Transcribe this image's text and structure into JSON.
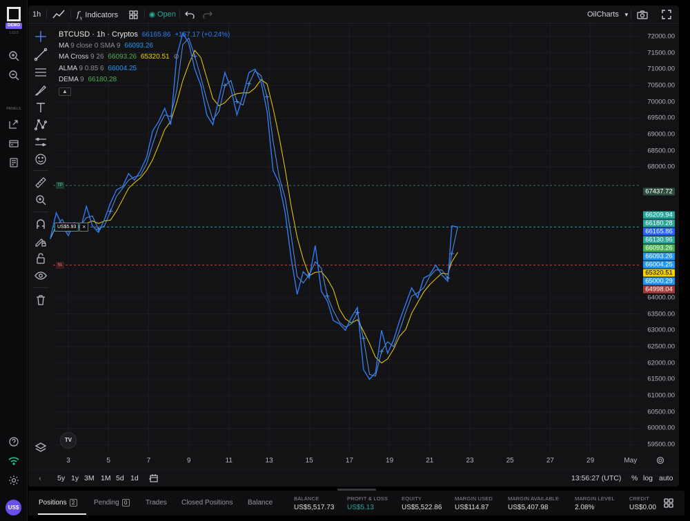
{
  "app": {
    "badge": "DEMO",
    "version": "1.63.5",
    "panels_label": "PANELS",
    "user_initials": "US$"
  },
  "toolbar": {
    "interval": "1h",
    "indicators_label": "Indicators",
    "market_status": "Open",
    "layout_name": "OilCharts"
  },
  "legend": {
    "symbol": "BTCUSD · 1h · Cryptos",
    "price": "66165.86",
    "change": "+157.17 (+0.24%)",
    "ma": {
      "name": "MA",
      "params": "9 close 0 SMA 9",
      "value": "66093.26"
    },
    "ma_cross": {
      "name": "MA Cross",
      "params": "9 26",
      "value1": "66093.26",
      "value2": "65320.51"
    },
    "alma": {
      "name": "ALMA",
      "params": "9 0.85 6",
      "value": "66004.25"
    },
    "dema": {
      "name": "DEMA",
      "params": "9",
      "value": "66180.28"
    }
  },
  "orders": {
    "tp_label": "TP",
    "sl_label": "SL",
    "position_pnl": "US$5.93"
  },
  "price_axis": {
    "ticks": [
      "72000.00",
      "71500.00",
      "71000.00",
      "70500.00",
      "70000.00",
      "69500.00",
      "69000.00",
      "68500.00",
      "68000.00",
      "64000.00",
      "63500.00",
      "63000.00",
      "62500.00",
      "62000.00",
      "61500.00",
      "61000.00",
      "60500.00",
      "60000.00",
      "59500.00"
    ],
    "badges": [
      {
        "value": "67437.72",
        "color": "#2e4d3f"
      },
      {
        "value": "66209.94",
        "color": "#26a69a"
      },
      {
        "value": "66180.28",
        "color": "#26a69a"
      },
      {
        "value": "66165.86",
        "color": "#2962ff"
      },
      {
        "value": "66130.96",
        "color": "#26a69a"
      },
      {
        "value": "66093.26",
        "color": "#4caf50"
      },
      {
        "value": "66093.26",
        "color": "#2196f3"
      },
      {
        "value": "66004.25",
        "color": "#2196f3"
      },
      {
        "value": "65320.51",
        "color": "#f5d300"
      },
      {
        "value": "65000.29",
        "color": "#2196f3"
      },
      {
        "value": "64998.04",
        "color": "#a83a3a"
      }
    ]
  },
  "time_axis": {
    "ticks": [
      "3",
      "5",
      "7",
      "9",
      "11",
      "13",
      "15",
      "17",
      "19",
      "21",
      "23",
      "25",
      "27",
      "29",
      "May"
    ]
  },
  "rangebar": {
    "ranges": [
      "5y",
      "1y",
      "3M",
      "1M",
      "5d",
      "1d"
    ],
    "clock": "13:56:27 (UTC)",
    "percent": "%",
    "log": "log",
    "auto": "auto"
  },
  "account": {
    "tabs": [
      {
        "label": "Positions",
        "count": "2"
      },
      {
        "label": "Pending",
        "count": "0"
      },
      {
        "label": "Trades"
      },
      {
        "label": "Closed Positions"
      },
      {
        "label": "Balance"
      }
    ],
    "stats": [
      {
        "label": "BALANCE",
        "value": "US$5,517.73"
      },
      {
        "label": "PROFIT & LOSS",
        "value": "US$5.13"
      },
      {
        "label": "EQUITY",
        "value": "US$5,522.86"
      },
      {
        "label": "MARGIN USED",
        "value": "US$114.87"
      },
      {
        "label": "MARGIN AVAILABLE",
        "value": "US$5,407.98"
      },
      {
        "label": "MARGIN LEVEL",
        "value": "2.08%"
      },
      {
        "label": "CREDIT",
        "value": "US$0.00"
      }
    ]
  },
  "colors": {
    "price_line": "#2f7cf6",
    "ma_slow": "#f5d300",
    "tp_line": "#2e7d64",
    "position_line": "#26a69a",
    "sl_line": "#c04545",
    "pnl_positive": "#26a69a"
  },
  "chart_data": {
    "type": "line",
    "symbol": "BTCUSD",
    "interval": "1h",
    "x_ticks": [
      "3",
      "5",
      "7",
      "9",
      "11",
      "13",
      "15",
      "17",
      "19",
      "21",
      "23",
      "25",
      "27",
      "29",
      "May"
    ],
    "ylim": [
      59250,
      72400
    ],
    "series": [
      {
        "name": "BTCUSD",
        "x": [
          2.1,
          2.4,
          2.7,
          3.0,
          3.3,
          3.6,
          3.9,
          4.2,
          4.5,
          4.8,
          5.1,
          5.4,
          5.7,
          6.0,
          6.3,
          6.6,
          6.9,
          7.2,
          7.5,
          7.8,
          8.1,
          8.4,
          8.7,
          9.0,
          9.3,
          9.6,
          9.9,
          10.2,
          10.5,
          10.8,
          11.1,
          11.4,
          11.7,
          12.0,
          12.3,
          12.6,
          12.9,
          13.2,
          13.5,
          13.8,
          14.1,
          14.4,
          14.7,
          15.0,
          15.3,
          15.6,
          15.9,
          16.2,
          16.5,
          16.8,
          17.1,
          17.4,
          17.7,
          18.0,
          18.3,
          18.6,
          18.9,
          19.2,
          19.5,
          19.8,
          20.1,
          20.4,
          20.7,
          21.0,
          21.3,
          21.6,
          21.9,
          22.1,
          22.4
        ],
        "y": [
          65800,
          66600,
          66200,
          65900,
          66300,
          66100,
          66800,
          66200,
          66000,
          66400,
          66900,
          67300,
          67400,
          67800,
          67600,
          67900,
          68300,
          69100,
          69400,
          69800,
          69300,
          71400,
          72100,
          71800,
          71000,
          70500,
          69600,
          69300,
          70100,
          70900,
          70400,
          69600,
          70200,
          70900,
          71000,
          70600,
          69700,
          67900,
          67500,
          66600,
          65200,
          64100,
          64800,
          64600,
          65600,
          64200,
          63900,
          63300,
          63200,
          63000,
          63400,
          63700,
          61800,
          61500,
          61700,
          63000,
          62300,
          62700,
          63300,
          63800,
          64300,
          64000,
          64600,
          64700,
          65000,
          64700,
          64500,
          66200,
          66160
        ]
      },
      {
        "name": "MA",
        "params": "9 close 0 SMA 9",
        "last": 66093.26
      },
      {
        "name": "MA Cross",
        "params": "9 26",
        "last": [
          66093.26,
          65320.51
        ]
      },
      {
        "name": "ALMA",
        "params": "9 0.85 6",
        "last": 66004.25
      },
      {
        "name": "DEMA",
        "params": "9",
        "last": 66180.28
      }
    ],
    "levels": {
      "take_profit": 67437.72,
      "stop_loss": 64998.04,
      "last_price": 66165.86
    },
    "grid": true
  }
}
